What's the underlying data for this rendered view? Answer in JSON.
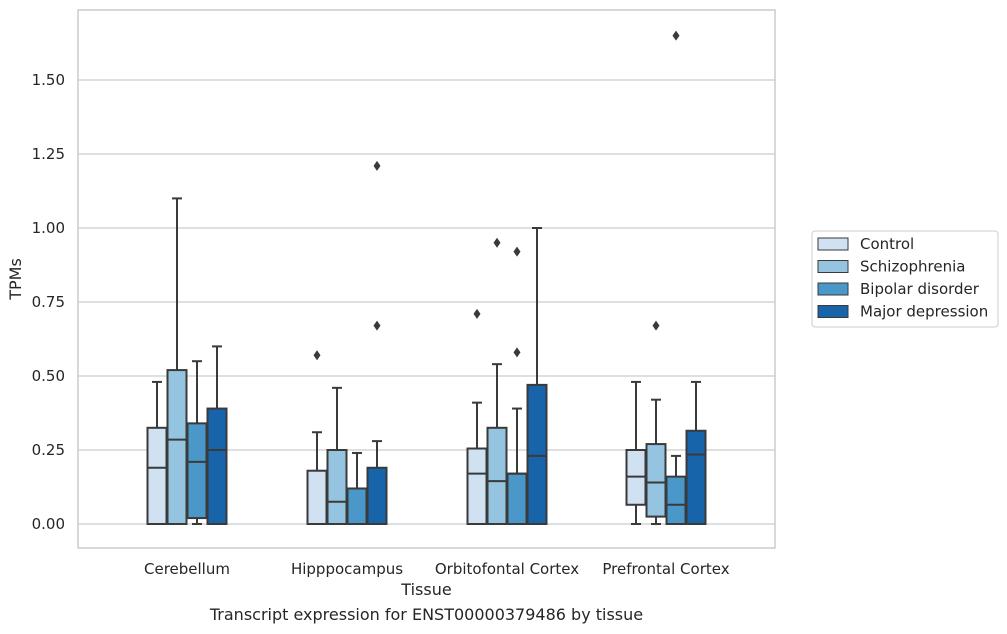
{
  "caption": "Transcript expression for ENST00000379486 by tissue",
  "colors": {
    "Control": "#d0e1f2",
    "Schizophrenia": "#94c4df",
    "Bipolar disorder": "#4a98c9",
    "Major depression": "#1764ab",
    "edge": "#3a3a3a",
    "grid": "#cccccc"
  },
  "chart_data": {
    "type": "box",
    "xlabel": "Tissue",
    "ylabel": "TPMs",
    "ylim": [
      -0.08,
      1.73
    ],
    "yticks": [
      "0.00",
      "0.25",
      "0.50",
      "0.75",
      "1.00",
      "1.25",
      "1.50"
    ],
    "grid": true,
    "legend_position": "right-outside",
    "categories": [
      "Cerebellum",
      "Hipppocampus",
      "Orbitofontal Cortex",
      "Prefrontal Cortex"
    ],
    "hue_order": [
      "Control",
      "Schizophrenia",
      "Bipolar disorder",
      "Major depression"
    ],
    "boxes": [
      {
        "tissue": "Cerebellum",
        "group": "Control",
        "whislo": 0.0,
        "q1": 0.0,
        "med": 0.19,
        "q3": 0.325,
        "whishi": 0.48,
        "fliers": []
      },
      {
        "tissue": "Cerebellum",
        "group": "Schizophrenia",
        "whislo": 0.0,
        "q1": 0.0,
        "med": 0.285,
        "q3": 0.52,
        "whishi": 1.1,
        "fliers": []
      },
      {
        "tissue": "Cerebellum",
        "group": "Bipolar disorder",
        "whislo": 0.0,
        "q1": 0.02,
        "med": 0.21,
        "q3": 0.34,
        "whishi": 0.55,
        "fliers": []
      },
      {
        "tissue": "Cerebellum",
        "group": "Major depression",
        "whislo": 0.0,
        "q1": 0.0,
        "med": 0.25,
        "q3": 0.39,
        "whishi": 0.6,
        "fliers": []
      },
      {
        "tissue": "Hipppocampus",
        "group": "Control",
        "whislo": 0.0,
        "q1": 0.0,
        "med": 0.0,
        "q3": 0.18,
        "whishi": 0.31,
        "fliers": [
          0.57
        ]
      },
      {
        "tissue": "Hipppocampus",
        "group": "Schizophrenia",
        "whislo": 0.0,
        "q1": 0.0,
        "med": 0.075,
        "q3": 0.25,
        "whishi": 0.46,
        "fliers": []
      },
      {
        "tissue": "Hipppocampus",
        "group": "Bipolar disorder",
        "whislo": 0.0,
        "q1": 0.0,
        "med": 0.0,
        "q3": 0.12,
        "whishi": 0.24,
        "fliers": []
      },
      {
        "tissue": "Hipppocampus",
        "group": "Major depression",
        "whislo": 0.0,
        "q1": 0.0,
        "med": 0.0,
        "q3": 0.19,
        "whishi": 0.28,
        "fliers": [
          0.67,
          1.21
        ]
      },
      {
        "tissue": "Orbitofontal Cortex",
        "group": "Control",
        "whislo": 0.0,
        "q1": 0.0,
        "med": 0.17,
        "q3": 0.255,
        "whishi": 0.41,
        "fliers": [
          0.71
        ]
      },
      {
        "tissue": "Orbitofontal Cortex",
        "group": "Schizophrenia",
        "whislo": 0.0,
        "q1": 0.0,
        "med": 0.145,
        "q3": 0.325,
        "whishi": 0.54,
        "fliers": [
          0.95
        ]
      },
      {
        "tissue": "Orbitofontal Cortex",
        "group": "Bipolar disorder",
        "whislo": 0.0,
        "q1": 0.0,
        "med": 0.17,
        "q3": 0.17,
        "whishi": 0.39,
        "fliers": [
          0.58,
          0.92
        ]
      },
      {
        "tissue": "Orbitofontal Cortex",
        "group": "Major depression",
        "whislo": 0.0,
        "q1": 0.0,
        "med": 0.23,
        "q3": 0.47,
        "whishi": 1.0,
        "fliers": []
      },
      {
        "tissue": "Prefrontal Cortex",
        "group": "Control",
        "whislo": 0.0,
        "q1": 0.065,
        "med": 0.16,
        "q3": 0.25,
        "whishi": 0.48,
        "fliers": []
      },
      {
        "tissue": "Prefrontal Cortex",
        "group": "Schizophrenia",
        "whislo": 0.0,
        "q1": 0.025,
        "med": 0.14,
        "q3": 0.27,
        "whishi": 0.42,
        "fliers": [
          0.67
        ]
      },
      {
        "tissue": "Prefrontal Cortex",
        "group": "Bipolar disorder",
        "whislo": 0.0,
        "q1": 0.0,
        "med": 0.065,
        "q3": 0.16,
        "whishi": 0.23,
        "fliers": [
          1.65
        ]
      },
      {
        "tissue": "Prefrontal Cortex",
        "group": "Major depression",
        "whislo": 0.0,
        "q1": 0.0,
        "med": 0.235,
        "q3": 0.315,
        "whishi": 0.48,
        "fliers": []
      }
    ]
  }
}
